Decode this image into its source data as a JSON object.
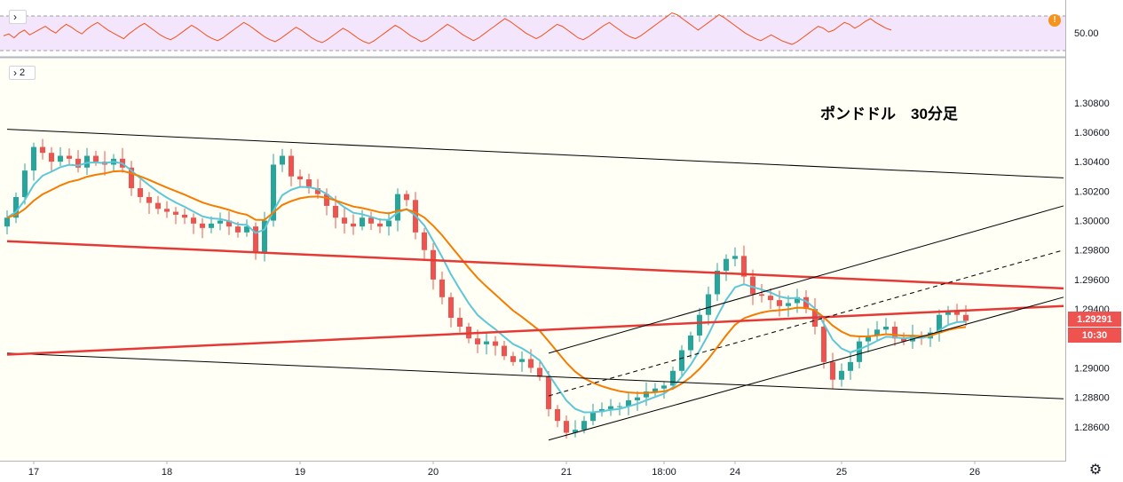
{
  "indicator_pane": {
    "collapse_label": "",
    "level_label": "50.00",
    "alert_label": "!",
    "values": [
      60,
      62,
      58,
      63,
      66,
      61,
      64,
      67,
      70,
      66,
      63,
      68,
      72,
      69,
      65,
      62,
      67,
      71,
      74,
      70,
      66,
      63,
      60,
      57,
      62,
      66,
      70,
      73,
      69,
      65,
      61,
      58,
      56,
      59,
      63,
      67,
      71,
      68,
      64,
      60,
      57,
      55,
      58,
      62,
      66,
      70,
      74,
      71,
      67,
      63,
      59,
      56,
      54,
      57,
      61,
      65,
      69,
      66,
      62,
      58,
      55,
      53,
      56,
      60,
      64,
      68,
      65,
      61,
      57,
      54,
      52,
      55,
      59,
      63,
      67,
      71,
      68,
      64,
      60,
      57,
      54,
      56,
      60,
      64,
      68,
      72,
      69,
      65,
      61,
      58,
      55,
      58,
      62,
      66,
      70,
      74,
      78,
      75,
      71,
      67,
      63,
      60,
      57,
      60,
      64,
      68,
      72,
      70,
      66,
      62,
      58,
      56,
      59,
      63,
      67,
      71,
      74,
      70,
      66,
      62,
      59,
      57,
      60,
      64,
      68,
      72,
      76,
      80,
      84,
      82,
      78,
      74,
      70,
      66,
      70,
      74,
      78,
      82,
      79,
      75,
      71,
      67,
      63,
      60,
      57,
      55,
      58,
      61,
      58,
      55,
      53,
      51,
      54,
      58,
      62,
      66,
      70,
      68,
      64,
      66,
      70,
      74,
      72,
      68,
      71,
      75,
      78,
      74,
      71,
      68,
      66
    ]
  },
  "main_pane": {
    "collapse_label": "2",
    "annotation": "ポンドドル　30分足",
    "price_badge": "1.29291",
    "time_badge": "10:30"
  },
  "chart_data": {
    "type": "candlestick",
    "title": "ポンドドル　30分足",
    "y_ticks": [
      "1.30800",
      "1.30600",
      "1.30400",
      "1.30200",
      "1.30000",
      "1.29800",
      "1.29600",
      "1.29400",
      "1.29200",
      "1.29000",
      "1.28800",
      "1.28600"
    ],
    "ylim": [
      1.2837,
      1.311
    ],
    "x_labels": [
      {
        "label": "17",
        "i": 3
      },
      {
        "label": "18",
        "i": 18
      },
      {
        "label": "19",
        "i": 33
      },
      {
        "label": "20",
        "i": 48
      },
      {
        "label": "21",
        "i": 63
      },
      {
        "label": "18:00",
        "i": 74
      },
      {
        "label": "24",
        "i": 82
      },
      {
        "label": "25",
        "i": 94
      },
      {
        "label": "26",
        "i": 109
      }
    ],
    "close": [
      1.3002,
      1.3016,
      1.3034,
      1.305,
      1.3046,
      1.304,
      1.3044,
      1.3042,
      1.3036,
      1.3044,
      1.304,
      1.3038,
      1.3042,
      1.3036,
      1.3022,
      1.3016,
      1.3012,
      1.3008,
      1.3006,
      1.3004,
      1.3002,
      1.2998,
      1.2995,
      1.2998,
      1.3,
      1.2996,
      1.2992,
      1.2996,
      1.2978,
      1.3,
      1.3038,
      1.3044,
      1.303,
      1.3028,
      1.3022,
      1.3018,
      1.301,
      1.3002,
      1.2998,
      1.2996,
      1.3002,
      1.2998,
      1.2996,
      1.3,
      1.3018,
      1.3014,
      1.2992,
      1.298,
      1.296,
      1.2948,
      1.2934,
      1.2928,
      1.292,
      1.2916,
      1.2918,
      1.2915,
      1.2908,
      1.2904,
      1.2906,
      1.29,
      1.2894,
      1.2872,
      1.2864,
      1.2856,
      1.2858,
      1.2864,
      1.287,
      1.2872,
      1.2874,
      1.2874,
      1.2878,
      1.288,
      1.2884,
      1.2886,
      1.2888,
      1.2898,
      1.2912,
      1.2922,
      1.2936,
      1.295,
      1.2966,
      1.2974,
      1.2976,
      1.2962,
      1.295,
      1.2949,
      1.2946,
      1.2942,
      1.2944,
      1.2948,
      1.294,
      1.2928,
      1.2904,
      1.2892,
      1.2898,
      1.2904,
      1.2918,
      1.2922,
      1.2926,
      1.2928,
      1.292,
      1.2918,
      1.2922,
      1.292,
      1.2924,
      1.2936,
      1.2938,
      1.2936,
      1.2932
    ],
    "ma_short_label": "",
    "ma_long_label": "",
    "ma_short_color": "#5dc7d9",
    "ma_long_color": "#f57c00",
    "up_color": "#26a69a",
    "down_color": "#ef5350",
    "trendlines": [
      {
        "style": "solid",
        "color": "#000000",
        "from": [
          0,
          1.3062
        ],
        "to": [
          119,
          1.3029
        ]
      },
      {
        "style": "solid",
        "color": "#000000",
        "from": [
          0,
          1.291
        ],
        "to": [
          119,
          1.2879
        ]
      },
      {
        "style": "solid",
        "color": "#e53935",
        "from": [
          0,
          1.2986
        ],
        "to": [
          119,
          1.2954
        ]
      },
      {
        "style": "solid",
        "color": "#e53935",
        "from": [
          0,
          1.2909
        ],
        "to": [
          119,
          1.2942
        ]
      },
      {
        "style": "solid",
        "color": "#000000",
        "from": [
          61,
          1.291
        ],
        "to": [
          119,
          1.301
        ]
      },
      {
        "style": "dashed",
        "color": "#000000",
        "from": [
          61,
          1.2881
        ],
        "to": [
          119,
          1.298
        ]
      },
      {
        "style": "solid",
        "color": "#000000",
        "from": [
          61,
          1.2851
        ],
        "to": [
          119,
          1.2948
        ]
      }
    ]
  }
}
